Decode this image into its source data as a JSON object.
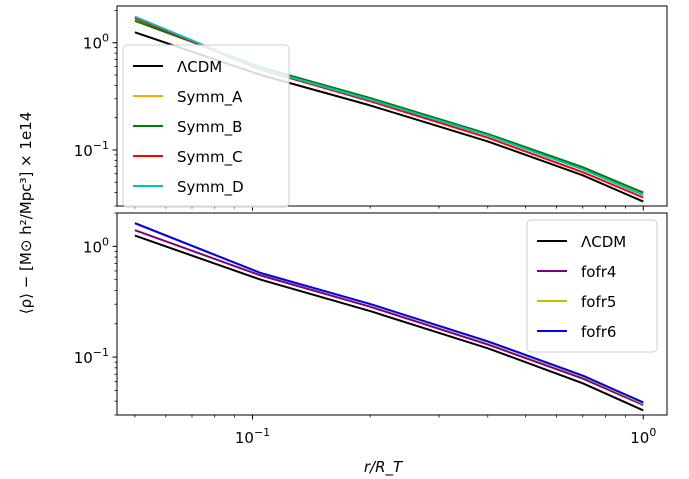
{
  "figure": {
    "ylabel": "⟨ρ⟩ − [M⊙ h²/Mpc³] × 1e14",
    "xlabel": "r/R_T"
  },
  "chart_data": [
    {
      "type": "line",
      "xscale": "log",
      "yscale": "log",
      "xlim": [
        0.045,
        1.15
      ],
      "ylim": [
        0.03,
        2.2
      ],
      "xticks": [
        {
          "value": 0.1,
          "base": "10",
          "exp": "−1"
        },
        {
          "value": 1,
          "base": "10",
          "exp": "0"
        }
      ],
      "yticks": [
        {
          "value": 0.1,
          "base": "10",
          "exp": "−1"
        },
        {
          "value": 1,
          "base": "10",
          "exp": "0"
        }
      ],
      "legend_position": "left",
      "series": [
        {
          "name": "ΛCDM",
          "color": "#000000",
          "x": [
            0.05,
            0.105,
            0.2,
            0.4,
            0.7,
            1.0
          ],
          "y": [
            1.25,
            0.5,
            0.26,
            0.12,
            0.058,
            0.033
          ]
        },
        {
          "name": "Symm_A",
          "color": "#ffa500",
          "x": [
            0.05,
            0.105,
            0.2,
            0.4,
            0.7,
            1.0
          ],
          "y": [
            1.65,
            0.58,
            0.3,
            0.14,
            0.068,
            0.04
          ]
        },
        {
          "name": "Symm_B",
          "color": "#008000",
          "x": [
            0.05,
            0.105,
            0.2,
            0.4,
            0.7,
            1.0
          ],
          "y": [
            1.6,
            0.59,
            0.305,
            0.141,
            0.069,
            0.04
          ]
        },
        {
          "name": "Symm_C",
          "color": "#ff0000",
          "x": [
            0.05,
            0.105,
            0.2,
            0.4,
            0.7,
            1.0
          ],
          "y": [
            1.7,
            0.56,
            0.285,
            0.13,
            0.062,
            0.036
          ]
        },
        {
          "name": "Symm_D",
          "color": "#00bfbf",
          "x": [
            0.05,
            0.105,
            0.2,
            0.4,
            0.7,
            1.0
          ],
          "y": [
            1.75,
            0.57,
            0.295,
            0.137,
            0.066,
            0.038
          ]
        }
      ]
    },
    {
      "type": "line",
      "xscale": "log",
      "yscale": "log",
      "xlim": [
        0.045,
        1.15
      ],
      "ylim": [
        0.03,
        2.0
      ],
      "xticks": [
        {
          "value": 0.1,
          "base": "10",
          "exp": "−1"
        },
        {
          "value": 1,
          "base": "10",
          "exp": "0"
        }
      ],
      "yticks": [
        {
          "value": 0.1,
          "base": "10",
          "exp": "−1"
        },
        {
          "value": 1,
          "base": "10",
          "exp": "0"
        }
      ],
      "legend_position": "top-right",
      "series": [
        {
          "name": "ΛCDM",
          "color": "#000000",
          "x": [
            0.05,
            0.105,
            0.2,
            0.4,
            0.7,
            1.0
          ],
          "y": [
            1.25,
            0.5,
            0.26,
            0.12,
            0.058,
            0.033
          ]
        },
        {
          "name": "fofr4",
          "color": "#800080",
          "x": [
            0.05,
            0.105,
            0.2,
            0.4,
            0.7,
            1.0
          ],
          "y": [
            1.4,
            0.545,
            0.285,
            0.13,
            0.064,
            0.037
          ]
        },
        {
          "name": "fofr5",
          "color": "#bfbf00",
          "x": [
            0.05,
            0.105,
            0.2,
            0.4,
            0.7,
            1.0
          ],
          "y": [
            1.6,
            0.57,
            0.3,
            0.137,
            0.067,
            0.038
          ]
        },
        {
          "name": "fofr6",
          "color": "#0000ff",
          "x": [
            0.05,
            0.105,
            0.2,
            0.4,
            0.7,
            1.0
          ],
          "y": [
            1.62,
            0.575,
            0.302,
            0.139,
            0.068,
            0.039
          ]
        }
      ]
    }
  ]
}
